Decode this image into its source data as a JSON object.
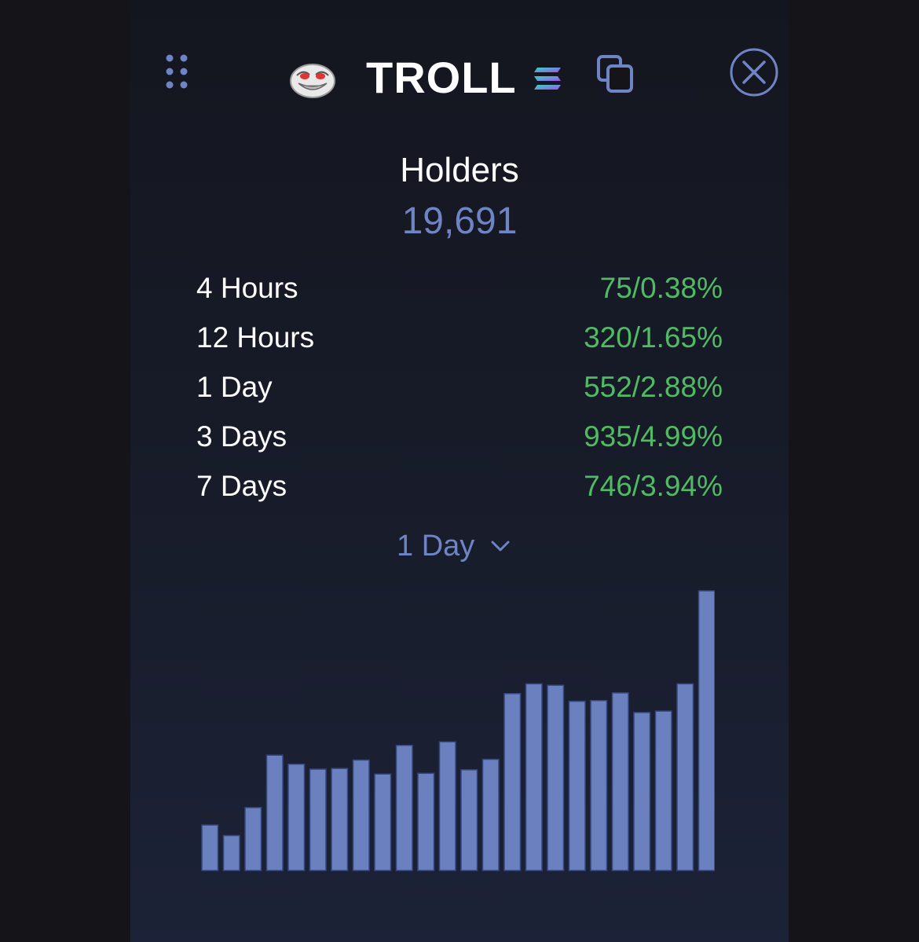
{
  "header": {
    "token_symbol": "TROLL",
    "icons": {
      "drag": "drag-handle-icon",
      "avatar": "troll-face-icon",
      "chain": "solana-icon",
      "copy": "copy-icon",
      "close": "close-circle-icon"
    }
  },
  "holders": {
    "heading": "Holders",
    "total": "19,691"
  },
  "stats": [
    {
      "label": "4 Hours",
      "value": "75/0.38%"
    },
    {
      "label": "12 Hours",
      "value": "320/1.65%"
    },
    {
      "label": "1 Day",
      "value": "552/2.88%"
    },
    {
      "label": "3 Days",
      "value": "935/4.99%"
    },
    {
      "label": "7 Days",
      "value": "746/3.94%"
    }
  ],
  "period_selector": {
    "selected": "1 Day"
  },
  "colors": {
    "accent": "#6e84c4",
    "positive": "#4fbb62",
    "bar": "#6a80bf",
    "background": "#141419"
  },
  "chart_data": {
    "type": "bar",
    "title": "",
    "xlabel": "",
    "ylabel": "",
    "ylim": [
      0,
      40
    ],
    "values": [
      6.5,
      5,
      9,
      16.5,
      15.2,
      14.5,
      14.6,
      15.8,
      13.8,
      17.9,
      13.9,
      18.4,
      14.4,
      15.9,
      25.3,
      26.7,
      26.5,
      24.2,
      24.3,
      25.4,
      22.6,
      22.8,
      26.7,
      40
    ]
  }
}
